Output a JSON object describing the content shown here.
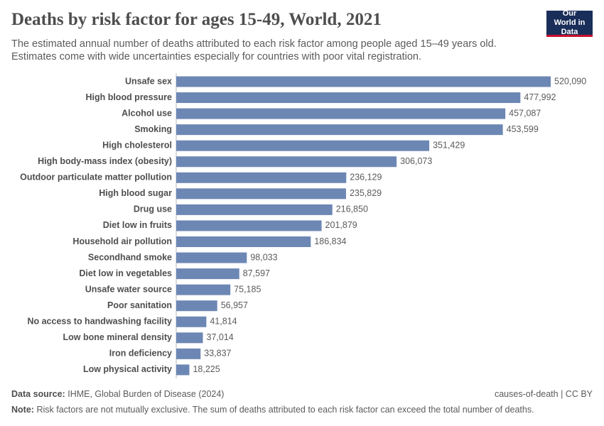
{
  "chart_data": {
    "type": "bar",
    "orientation": "horizontal",
    "title": "Deaths by risk factor for ages 15-49, World, 2021",
    "subtitle": "The estimated annual number of deaths attributed to each risk factor among people aged 15–49 years old. Estimates come with wide uncertainties especially for countries with poor vital registration.",
    "logo": "Our World in Data",
    "categories": [
      "Unsafe sex",
      "High blood pressure",
      "Alcohol use",
      "Smoking",
      "High cholesterol",
      "High body-mass index (obesity)",
      "Outdoor particulate matter pollution",
      "High blood sugar",
      "Drug use",
      "Diet low in fruits",
      "Household air pollution",
      "Secondhand smoke",
      "Diet low in vegetables",
      "Unsafe water source",
      "Poor sanitation",
      "No access to handwashing facility",
      "Low bone mineral density",
      "Iron deficiency",
      "Low physical activity"
    ],
    "values": [
      520090,
      477992,
      457087,
      453599,
      351429,
      306073,
      236129,
      235829,
      216850,
      201879,
      186834,
      98033,
      87597,
      75185,
      56957,
      41814,
      37014,
      33837,
      18225
    ],
    "value_labels": [
      "520,090",
      "477,992",
      "457,087",
      "453,599",
      "351,429",
      "306,073",
      "236,129",
      "235,829",
      "216,850",
      "201,879",
      "186,834",
      "98,033",
      "87,597",
      "75,185",
      "56,957",
      "41,814",
      "37,014",
      "33,837",
      "18,225"
    ],
    "color": "#6d87b4",
    "source_label": "Data source:",
    "source": "IHME, Global Burden of Disease (2024)",
    "license": "causes-of-death | CC BY",
    "note_label": "Note:",
    "note": "Risk factors are not mutually exclusive. The sum of deaths attributed to each risk factor can exceed the total number of deaths."
  }
}
